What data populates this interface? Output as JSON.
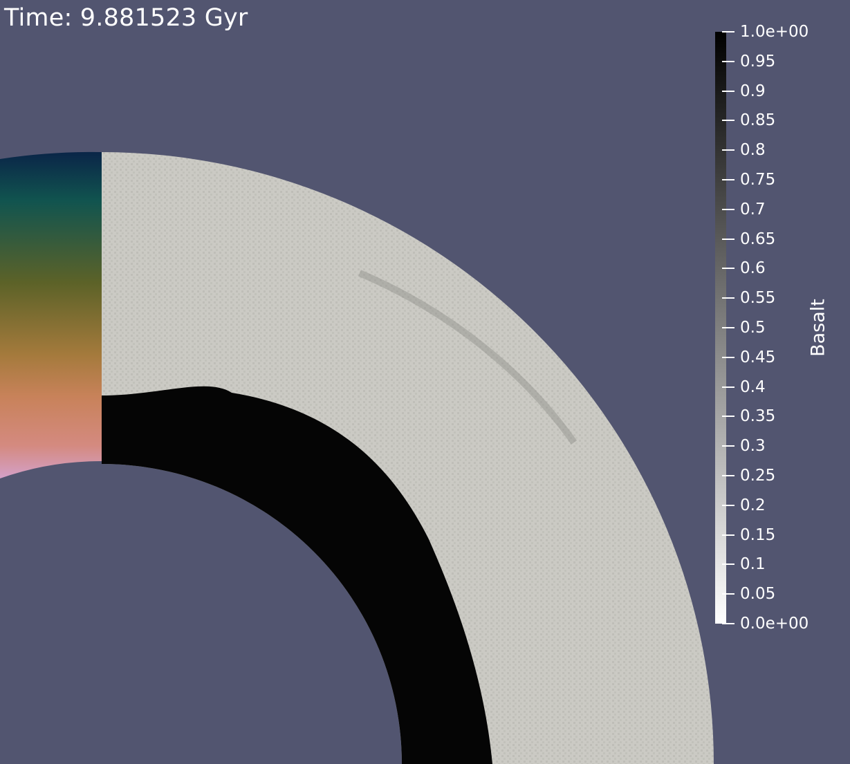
{
  "time_label": "Time: 9.881523 Gyr",
  "colorbar": {
    "title": "Basalt",
    "min": 0.0,
    "max": 1.0,
    "tick_labels": [
      "1.0e+00",
      "0.95",
      "0.9",
      "0.85",
      "0.8",
      "0.75",
      "0.7",
      "0.65",
      "0.6",
      "0.55",
      "0.5",
      "0.45",
      "0.4",
      "0.35",
      "0.3",
      "0.25",
      "0.2",
      "0.15",
      "0.1",
      "0.05",
      "0.0e+00"
    ],
    "color_high": "#000000",
    "color_low": "#ffffff"
  },
  "colors": {
    "background": "#525570",
    "mantle": "#cbcac4",
    "basalt_layer": "#050505",
    "depth_strip_gradient": [
      "#0a2548",
      "#11544f",
      "#5c6228",
      "#a47a3c",
      "#c8825a",
      "#d48a80",
      "#d4a0c8"
    ]
  }
}
